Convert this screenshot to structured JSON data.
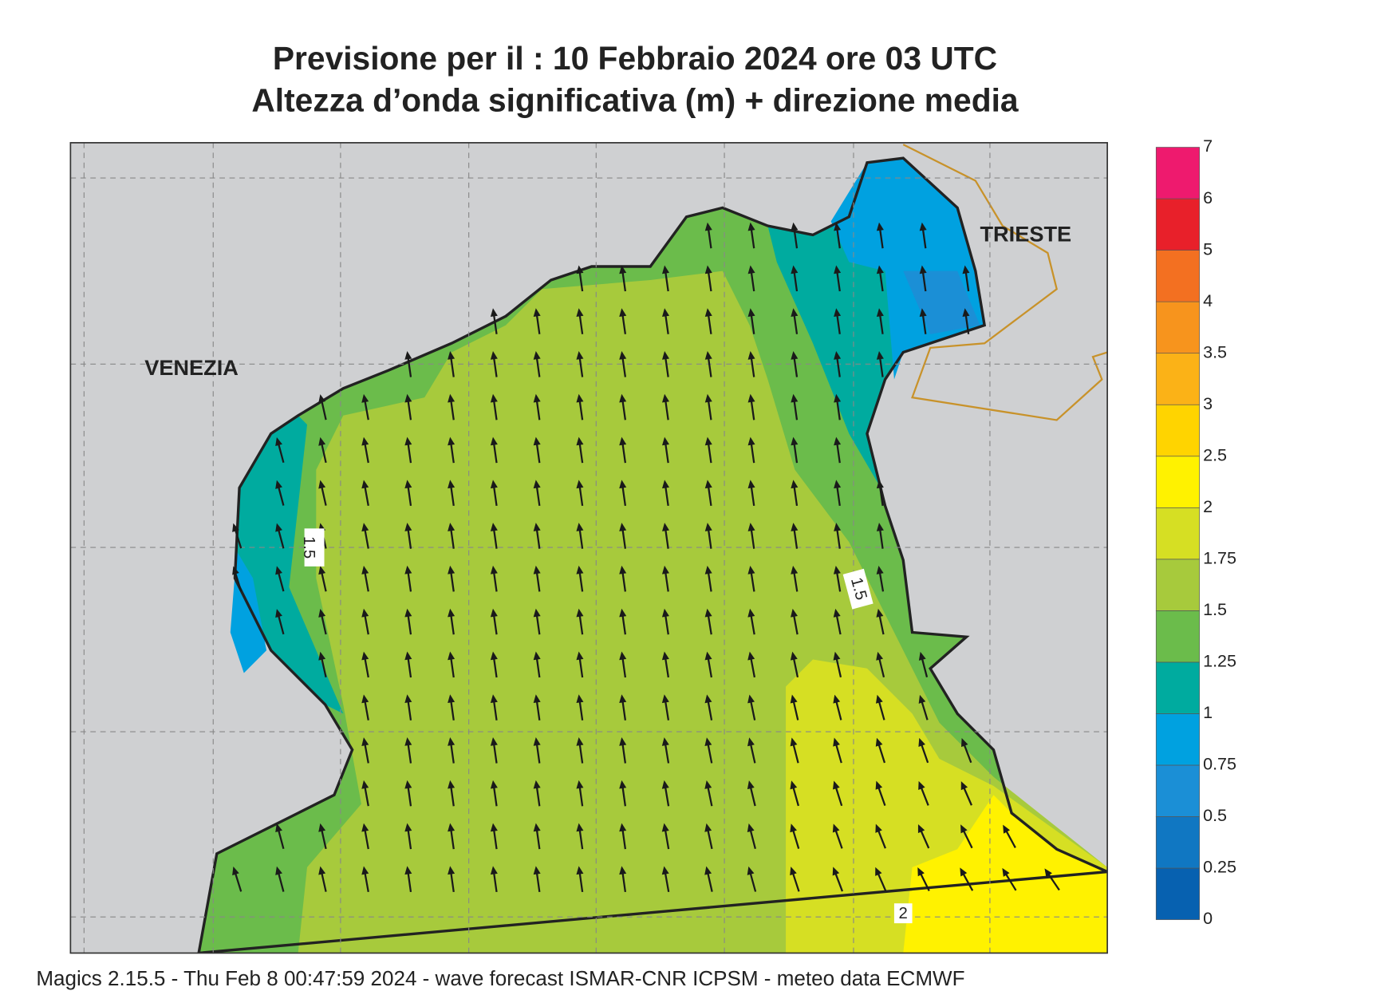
{
  "header": {
    "title": "Previsione per il  :  10  Febbraio 2024   ore 03 UTC",
    "subtitle": "Altezza d’onda significativa (m) + direzione media"
  },
  "map": {
    "places": [
      "VENEZIA",
      "TRIESTE"
    ],
    "contour_labels": [
      "1.5",
      "1.5",
      "2"
    ]
  },
  "colorbar": {
    "labels": [
      "0",
      "0.25",
      "0.5",
      "0.75",
      "1",
      "1.25",
      "1.5",
      "1.75",
      "2",
      "2.5",
      "3",
      "3.5",
      "4",
      "5",
      "6",
      "7"
    ],
    "colors": [
      "#0761b0",
      "#1077c2",
      "#1b8fd6",
      "#00a1e0",
      "#00ab9f",
      "#6bbc4b",
      "#a7ca3c",
      "#d6df23",
      "#fff200",
      "#ffd400",
      "#fbb217",
      "#f7941d",
      "#f37021",
      "#e8202a",
      "#ee1a6e"
    ]
  },
  "footer": "Magics 2.15.5 - Thu Feb  8 00:47:59 2024 - wave forecast  ISMAR-CNR  ICPSM - meteo data   ECMWF"
}
